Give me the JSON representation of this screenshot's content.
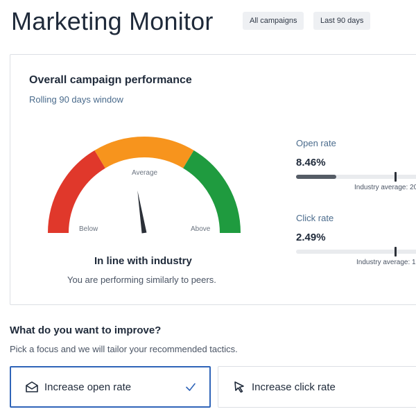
{
  "header": {
    "title": "Marketing Monitor",
    "filters": [
      {
        "label": "All campaigns"
      },
      {
        "label": "Last 90 days"
      }
    ]
  },
  "performance_card": {
    "title": "Overall campaign performance",
    "subtitle": "Rolling 90 days window",
    "gauge": {
      "labels": {
        "below": "Below",
        "average": "Average",
        "above": "Above"
      },
      "colors": {
        "below": "#e0382b",
        "average": "#f7941d",
        "above": "#1f9b3f",
        "needle": "#2b3038"
      },
      "needle_level": 0.45
    },
    "verdict": "In line with industry",
    "verdict_detail": "You are performing similarly to peers.",
    "metrics": [
      {
        "label": "Open rate",
        "value": "8.46%",
        "industry_text": "Industry average: 20",
        "fill_fraction": 0.29,
        "marker_fraction": 0.71
      },
      {
        "label": "Click rate",
        "value": "2.49%",
        "industry_text": "Industry average: 1",
        "fill_fraction": 0.0,
        "marker_fraction": 0.71
      }
    ]
  },
  "improve": {
    "title": "What do you want to improve?",
    "subtitle": "Pick a focus and we will tailor your recommended tactics.",
    "options": [
      {
        "label": "Increase open rate",
        "icon": "envelope-open-icon",
        "selected": true
      },
      {
        "label": "Increase click rate",
        "icon": "cursor-arrow-icon",
        "selected": false
      }
    ]
  }
}
